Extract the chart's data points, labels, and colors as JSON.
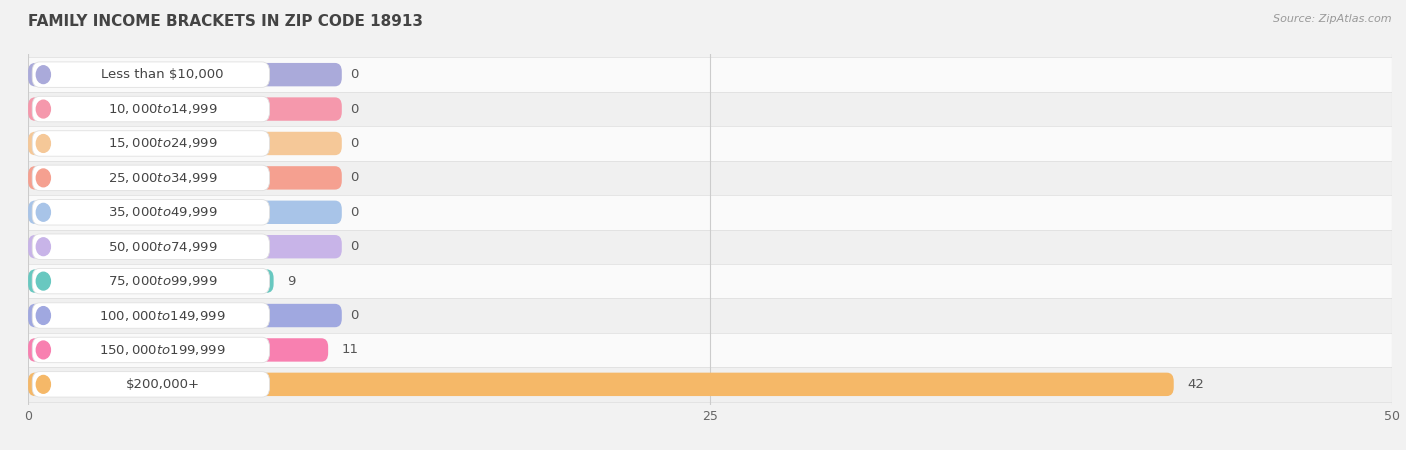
{
  "title": "FAMILY INCOME BRACKETS IN ZIP CODE 18913",
  "source": "Source: ZipAtlas.com",
  "categories": [
    "Less than $10,000",
    "$10,000 to $14,999",
    "$15,000 to $24,999",
    "$25,000 to $34,999",
    "$35,000 to $49,999",
    "$50,000 to $74,999",
    "$75,000 to $99,999",
    "$100,000 to $149,999",
    "$150,000 to $199,999",
    "$200,000+"
  ],
  "values": [
    0,
    0,
    0,
    0,
    0,
    0,
    9,
    0,
    11,
    42
  ],
  "bar_colors": [
    "#aaaada",
    "#f598ac",
    "#f5c898",
    "#f5a090",
    "#a8c4e8",
    "#c8b4e8",
    "#68c8c0",
    "#a0a8e0",
    "#f880b0",
    "#f5b868"
  ],
  "label_bg_colors": [
    "#f0f0f8",
    "#fce8ee",
    "#fef3e8",
    "#fdeae8",
    "#e8f0f8",
    "#ede8f8",
    "#e4f5f3",
    "#eceef8",
    "#fce8f2",
    "#fef3e8"
  ],
  "xlim": [
    0,
    50
  ],
  "xticks": [
    0,
    25,
    50
  ],
  "background_color": "#f2f2f2",
  "row_colors": [
    "#fafafa",
    "#f0f0f0"
  ],
  "title_fontsize": 11,
  "source_fontsize": 8,
  "label_fontsize": 9.5,
  "value_fontsize": 9.5,
  "bar_height": 0.68
}
